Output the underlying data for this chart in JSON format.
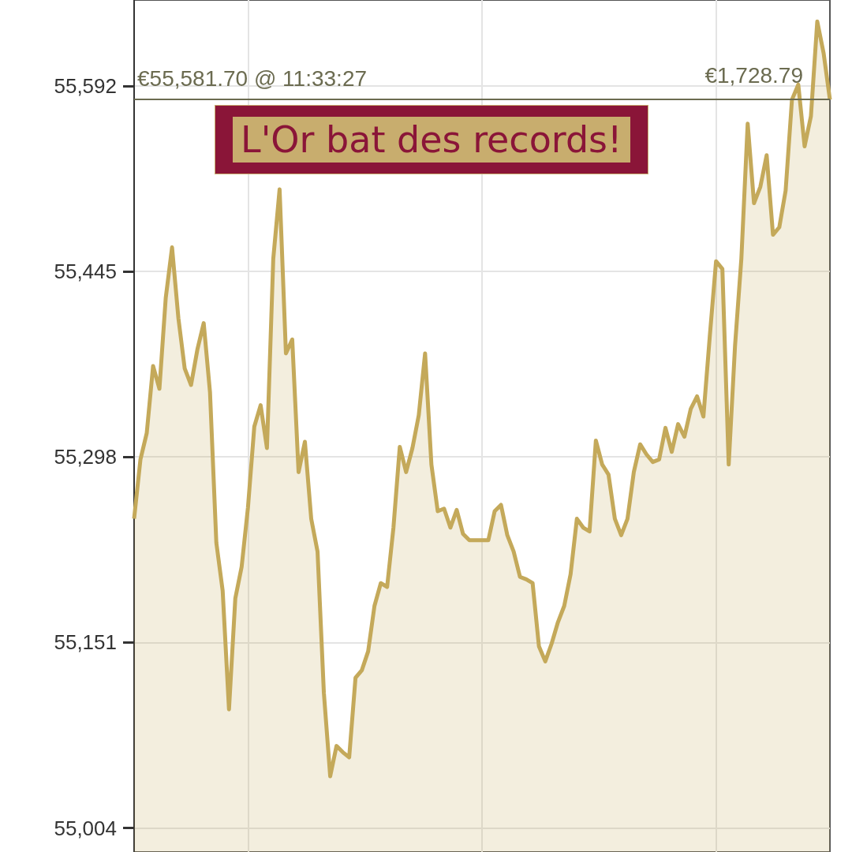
{
  "chart_data": {
    "type": "area",
    "title": "L'Or bat des records!",
    "color": "#c4a95a",
    "categories": [
      null,
      null,
      null,
      null,
      null,
      null,
      null,
      null,
      null,
      null,
      null,
      null,
      null,
      null,
      null,
      null,
      null,
      null,
      null,
      null,
      null,
      null,
      null,
      null,
      null,
      null,
      null,
      null,
      null,
      null,
      null,
      null,
      null,
      null,
      null,
      null,
      null,
      null,
      null,
      null,
      null,
      null,
      null,
      null,
      null,
      null,
      null,
      null,
      null,
      null,
      null,
      null,
      null,
      null,
      null,
      null,
      null,
      null,
      null,
      null,
      null,
      null,
      null,
      null,
      null,
      null,
      null,
      null,
      null,
      null,
      null,
      null,
      null,
      null,
      null,
      null,
      null,
      null,
      null,
      null,
      null,
      null,
      null,
      null,
      null,
      null,
      null,
      null,
      null,
      null,
      null,
      null,
      null,
      null,
      null,
      null,
      null,
      null,
      null,
      null,
      null,
      null,
      null,
      null,
      null,
      null,
      null,
      null,
      null,
      null,
      null
    ],
    "values": [
      55249,
      55296,
      55317,
      55370,
      55352,
      55424,
      55464,
      55408,
      55368,
      55355,
      55383,
      55404,
      55349,
      55230,
      55192,
      55098,
      55186,
      55211,
      55258,
      55322,
      55339,
      55305,
      55455,
      55510,
      55380,
      55391,
      55286,
      55310,
      55249,
      55223,
      55111,
      55045,
      55069,
      55064,
      55060,
      55123,
      55129,
      55144,
      55180,
      55198,
      55195,
      55242,
      55306,
      55286,
      55305,
      55331,
      55380,
      55292,
      55255,
      55257,
      55242,
      55256,
      55237,
      55232,
      55232,
      55232,
      55232,
      55255,
      55260,
      55236,
      55223,
      55203,
      55201,
      55198,
      55148,
      55136,
      55150,
      55167,
      55180,
      55205,
      55249,
      55242,
      55239,
      55311,
      55292,
      55284,
      55249,
      55236,
      55249,
      55286,
      55308,
      55300,
      55294,
      55296,
      55321,
      55302,
      55324,
      55314,
      55336,
      55346,
      55330,
      55393,
      55453,
      55447,
      55292,
      55386,
      55455,
      55562,
      55499,
      55512,
      55537,
      55474,
      55480,
      55509,
      55581,
      55593,
      55544,
      55568,
      55643,
      55618,
      55581
    ],
    "ylim": [
      54985,
      55660
    ],
    "yticks": [
      {
        "value": 55004,
        "label": "55,004"
      },
      {
        "value": 55151,
        "label": "55,151"
      },
      {
        "value": 55298,
        "label": "55,298"
      },
      {
        "value": 55445,
        "label": "55,445"
      },
      {
        "value": 55592,
        "label": "55,592"
      }
    ],
    "grid": true,
    "ref_lines": [
      {
        "axis": "y",
        "value": 55581.7,
        "label": "€55,581.70 @ 11:33:27",
        "color": "#6b6b50"
      }
    ],
    "annotations": [
      {
        "text": "€1,728.79",
        "y": 55581.7
      }
    ]
  }
}
